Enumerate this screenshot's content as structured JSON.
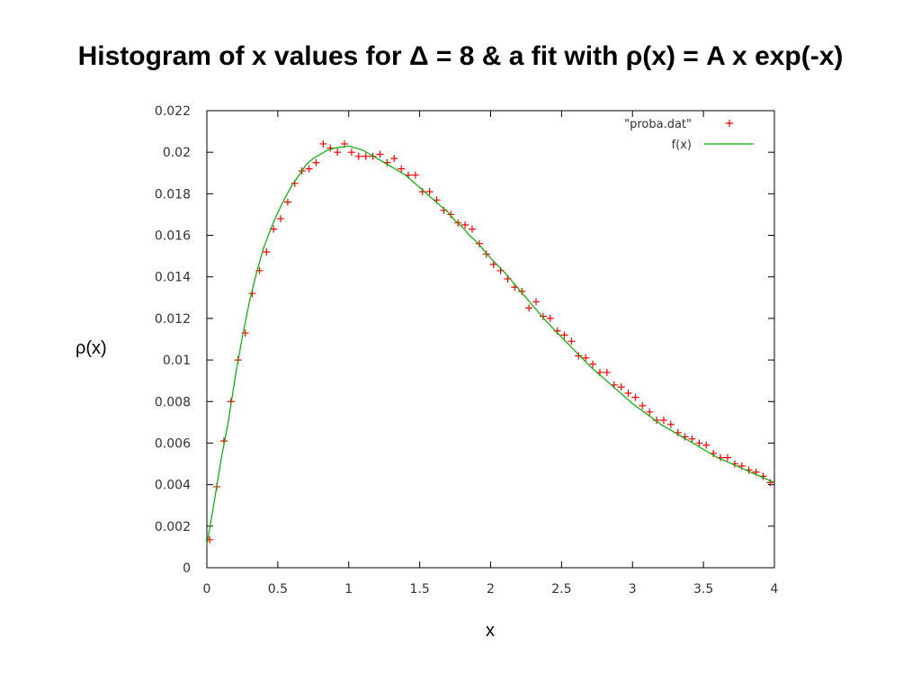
{
  "slide": {
    "title": "Histogram of x values for Δ = 8 & a fit with ρ(x) = A x exp(-x)"
  },
  "chart_data": {
    "type": "scatter",
    "title": "Histogram of x values for Δ = 8 & a fit with ρ(x) = A x exp(-x)",
    "xlabel": "x",
    "ylabel": "ρ(x)",
    "xlim": [
      0,
      4
    ],
    "ylim": [
      0,
      0.022
    ],
    "x_ticks": [
      0,
      0.5,
      1,
      1.5,
      2,
      2.5,
      3,
      3.5,
      4
    ],
    "x_tick_labels": [
      "0",
      "0.5",
      "1",
      "1.5",
      "2",
      "2.5",
      "3",
      "3.5",
      "4"
    ],
    "y_ticks": [
      0,
      0.002,
      0.004,
      0.006,
      0.008,
      0.01,
      0.012,
      0.014,
      0.016,
      0.018,
      0.02,
      0.022
    ],
    "y_tick_labels": [
      "0",
      "0.002",
      "0.004",
      "0.006",
      "0.008",
      "0.01",
      "0.012",
      "0.014",
      "0.016",
      "0.018",
      "0.02",
      "0.022"
    ],
    "grid": false,
    "legend_position": "top-right",
    "series": [
      {
        "name": "\"proba.dat\"",
        "kind": "scatter",
        "marker": "+",
        "color": "#ff0000",
        "x": [
          0.02,
          0.07,
          0.12,
          0.17,
          0.22,
          0.27,
          0.32,
          0.37,
          0.42,
          0.47,
          0.52,
          0.57,
          0.62,
          0.67,
          0.72,
          0.77,
          0.82,
          0.87,
          0.92,
          0.97,
          1.02,
          1.07,
          1.12,
          1.17,
          1.22,
          1.27,
          1.32,
          1.37,
          1.42,
          1.47,
          1.52,
          1.57,
          1.62,
          1.67,
          1.72,
          1.77,
          1.82,
          1.87,
          1.92,
          1.97,
          2.02,
          2.07,
          2.12,
          2.17,
          2.22,
          2.27,
          2.32,
          2.37,
          2.42,
          2.47,
          2.52,
          2.57,
          2.62,
          2.67,
          2.72,
          2.77,
          2.82,
          2.87,
          2.92,
          2.97,
          3.02,
          3.07,
          3.12,
          3.17,
          3.22,
          3.27,
          3.32,
          3.37,
          3.42,
          3.47,
          3.52,
          3.57,
          3.62,
          3.67,
          3.72,
          3.77,
          3.82,
          3.87,
          3.92,
          3.97
        ],
        "y": [
          0.00135,
          0.0039,
          0.0061,
          0.008,
          0.01,
          0.0113,
          0.0132,
          0.0143,
          0.0152,
          0.0163,
          0.0168,
          0.0176,
          0.0185,
          0.0191,
          0.0192,
          0.0195,
          0.0204,
          0.0202,
          0.02,
          0.0204,
          0.02,
          0.0198,
          0.0198,
          0.0198,
          0.0199,
          0.0195,
          0.0197,
          0.0192,
          0.0189,
          0.0189,
          0.0181,
          0.0181,
          0.0177,
          0.0172,
          0.017,
          0.0166,
          0.0165,
          0.0163,
          0.0156,
          0.0151,
          0.0146,
          0.0143,
          0.0139,
          0.0135,
          0.0133,
          0.0125,
          0.0128,
          0.0121,
          0.012,
          0.0114,
          0.0112,
          0.0109,
          0.0102,
          0.0101,
          0.0098,
          0.0094,
          0.0094,
          0.0088,
          0.0087,
          0.0084,
          0.0082,
          0.0078,
          0.0075,
          0.0071,
          0.0071,
          0.0069,
          0.0065,
          0.0063,
          0.0062,
          0.006,
          0.0059,
          0.0055,
          0.0053,
          0.0053,
          0.005,
          0.0049,
          0.0047,
          0.0046,
          0.0044,
          0.0041
        ]
      },
      {
        "name": "f(x)",
        "kind": "line",
        "color": "#00b000",
        "x": [
          0,
          0.05,
          0.1,
          0.15,
          0.2,
          0.25,
          0.3,
          0.35,
          0.4,
          0.45,
          0.5,
          0.55,
          0.6,
          0.65,
          0.7,
          0.75,
          0.8,
          0.85,
          0.9,
          0.95,
          1.0,
          1.05,
          1.1,
          1.15,
          1.2,
          1.25,
          1.3,
          1.35,
          1.4,
          1.45,
          1.5,
          1.55,
          1.6,
          1.65,
          1.7,
          1.75,
          1.8,
          1.85,
          1.9,
          1.95,
          2.0,
          2.1,
          2.2,
          2.3,
          2.4,
          2.5,
          2.6,
          2.7,
          2.8,
          2.9,
          3.0,
          3.1,
          3.2,
          3.3,
          3.4,
          3.5,
          3.6,
          3.7,
          3.8,
          3.9,
          4.0
        ],
        "y": [
          0.0011,
          0.0031,
          0.0052,
          0.007,
          0.0092,
          0.0111,
          0.0128,
          0.0142,
          0.0154,
          0.0163,
          0.0171,
          0.0178,
          0.0184,
          0.0189,
          0.0194,
          0.0197,
          0.0199,
          0.0201,
          0.0202,
          0.02025,
          0.0203,
          0.0202,
          0.0201,
          0.0199,
          0.0197,
          0.0195,
          0.0193,
          0.0191,
          0.0189,
          0.0186,
          0.0183,
          0.018,
          0.0177,
          0.0174,
          0.0171,
          0.0167,
          0.0164,
          0.016,
          0.0157,
          0.0153,
          0.0149,
          0.0142,
          0.0134,
          0.0126,
          0.0118,
          0.0111,
          0.0104,
          0.0097,
          0.0091,
          0.0085,
          0.0079,
          0.0074,
          0.0069,
          0.0065,
          0.0061,
          0.0057,
          0.0053,
          0.005,
          0.0047,
          0.0044,
          0.0041
        ]
      }
    ]
  }
}
